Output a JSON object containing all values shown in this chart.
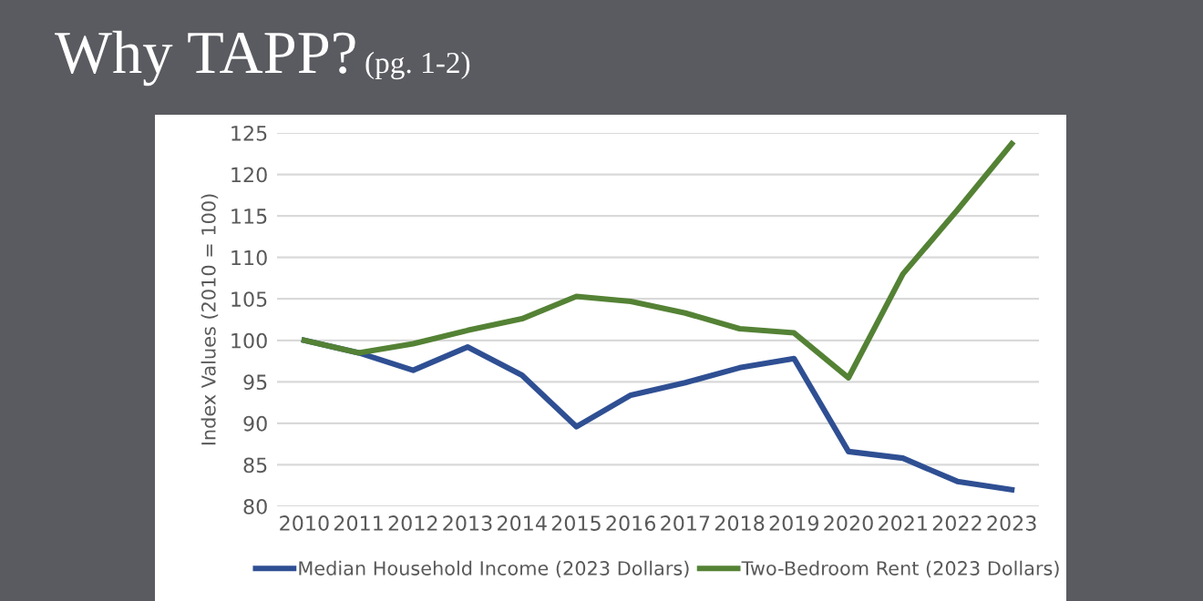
{
  "chart_data": {
    "type": "line",
    "title": "Why TAPP?",
    "subtitle": "(pg. 1-2)",
    "ylabel": "Index Values (2010 = 100)",
    "categories": [
      "2010",
      "2011",
      "2012",
      "2013",
      "2014",
      "2015",
      "2016",
      "2017",
      "2018",
      "2019",
      "2020",
      "2021",
      "2022",
      "2023"
    ],
    "series": [
      {
        "name": "Median Household Income (2023 Dollars)",
        "color": "#2f4f93",
        "values": [
          100,
          98.5,
          96.4,
          99.2,
          95.8,
          89.6,
          93.4,
          94.9,
          96.7,
          97.8,
          86.6,
          85.8,
          83.0,
          82.0
        ]
      },
      {
        "name": "Two-Bedroom Rent (2023 Dollars)",
        "color": "#548235",
        "values": [
          100,
          98.5,
          99.6,
          101.2,
          102.6,
          105.3,
          104.7,
          103.3,
          101.4,
          100.9,
          95.5,
          108.0,
          115.7,
          123.7
        ]
      }
    ],
    "ylim": [
      80,
      125
    ],
    "yticks": [
      80,
      85,
      90,
      95,
      100,
      105,
      110,
      115,
      120,
      125
    ],
    "grid": "y",
    "legend": "bottom",
    "marker": "none",
    "line_style": "solid"
  }
}
